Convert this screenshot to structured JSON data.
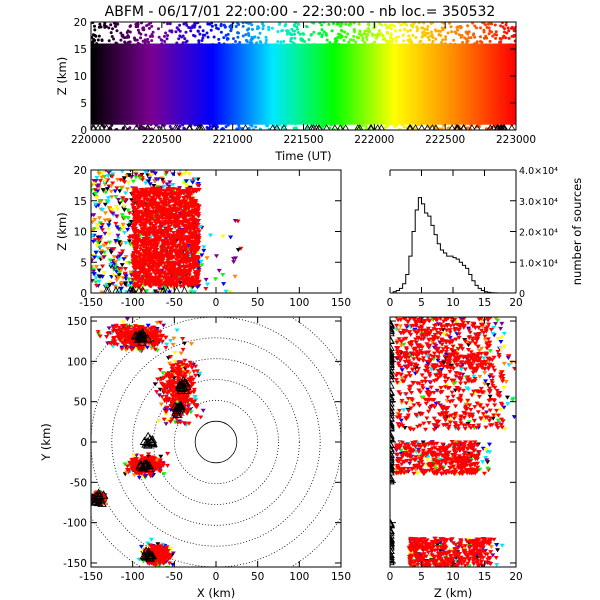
{
  "title": "ABFM - 06/17/01 22:00:00 - 22:30:00 - nb loc.= 350532",
  "chart_data": [
    {
      "panel": "top",
      "type": "scatter",
      "xlabel": "Time (UT)",
      "ylabel": "Z (km)",
      "xlim": [
        220000,
        223000
      ],
      "ylim": [
        0,
        20
      ],
      "xticks": [
        220000,
        220500,
        221000,
        221500,
        222000,
        222500,
        223000
      ],
      "yticks": [
        0,
        5,
        10,
        15,
        20
      ],
      "color_mapping": "time",
      "palette": [
        "#000000",
        "#7a0092",
        "#0000ff",
        "#00e8ff",
        "#00ff00",
        "#ffff00",
        "#ff8800",
        "#ff0000"
      ],
      "density_z_bottom": 1,
      "density_z_top": 16
    },
    {
      "panel": "xz",
      "type": "scatter",
      "xlabel": "",
      "ylabel": "Z (km)",
      "xlim": [
        -150,
        150
      ],
      "ylim": [
        0,
        20
      ],
      "xticks": [
        -150,
        -100,
        -50,
        0,
        50,
        100,
        150
      ],
      "yticks": [
        0,
        5,
        10,
        15,
        20
      ],
      "clusters": [
        {
          "x": [
            -100,
            -20
          ],
          "z": [
            1,
            17
          ],
          "color": "#ff0000"
        },
        {
          "x": [
            -150,
            -90
          ],
          "z": [
            0,
            20
          ],
          "color": "mixed"
        },
        {
          "x": [
            -80,
            -40
          ],
          "z": [
            15,
            20
          ],
          "color": "mixed"
        }
      ]
    },
    {
      "panel": "histogram",
      "type": "line",
      "xlabel": "",
      "ylabel": "number of sources",
      "xlim": [
        0,
        20
      ],
      "ylim": [
        0,
        40000
      ],
      "xticks": [
        0,
        5,
        10,
        15,
        20
      ],
      "ytick_labels": [
        "0",
        "1.0×10⁴",
        "2.0×10⁴",
        "3.0×10⁴",
        "4.0×10⁴"
      ],
      "ytick_values": [
        0,
        10000,
        20000,
        30000,
        40000
      ],
      "x": [
        0.5,
        1,
        1.5,
        2,
        2.5,
        3,
        3.5,
        4,
        4.5,
        5,
        5.5,
        6,
        6.5,
        7,
        7.5,
        8,
        8.5,
        9,
        9.5,
        10,
        10.5,
        11,
        11.5,
        12,
        12.5,
        13,
        13.5,
        14,
        14.5,
        15,
        15.5,
        16,
        16.5,
        17,
        17.5,
        18,
        18.5,
        19,
        19.5,
        20
      ],
      "values": [
        0,
        400,
        800,
        1500,
        3000,
        6000,
        12000,
        20000,
        27000,
        31000,
        29000,
        26000,
        25000,
        22000,
        19000,
        16000,
        14000,
        13000,
        12000,
        12000,
        11500,
        11000,
        10000,
        9000,
        8000,
        6000,
        4000,
        2500,
        1500,
        800,
        400,
        200,
        100,
        50,
        0,
        0,
        0,
        0,
        0,
        0
      ]
    },
    {
      "panel": "xy",
      "type": "scatter",
      "xlabel": "X (km)",
      "ylabel": "Y (km)",
      "xlim": [
        -150,
        150
      ],
      "ylim": [
        -155,
        155
      ],
      "xticks": [
        -150,
        -100,
        -50,
        0,
        50,
        100,
        150
      ],
      "yticks": [
        -150,
        -100,
        -50,
        0,
        50,
        100,
        150
      ],
      "range_rings_km": [
        25,
        50,
        75,
        100,
        125,
        150,
        175
      ],
      "solid_ring_km": 25,
      "clusters": [
        {
          "cx": -95,
          "cy": 130,
          "rx": 45,
          "ry": 22,
          "color": "#ff0000"
        },
        {
          "cx": -45,
          "cy": 65,
          "rx": 30,
          "ry": 55,
          "color": "#ff0000"
        },
        {
          "cx": -85,
          "cy": -30,
          "rx": 25,
          "ry": 15,
          "color": "#ff0000"
        },
        {
          "cx": -70,
          "cy": -140,
          "rx": 20,
          "ry": 15,
          "color": "#ff0000"
        },
        {
          "cx": -140,
          "cy": -70,
          "rx": 8,
          "ry": 8,
          "color": "#ff0000"
        }
      ],
      "marker_stations": [
        {
          "x": -90,
          "y": 130
        },
        {
          "x": -40,
          "y": 70
        },
        {
          "x": -45,
          "y": 40
        },
        {
          "x": -80,
          "y": 0
        },
        {
          "x": -85,
          "y": -30
        },
        {
          "x": -140,
          "y": -70
        },
        {
          "x": -80,
          "y": -140
        }
      ]
    },
    {
      "panel": "zy",
      "type": "scatter",
      "xlabel": "Z (km)",
      "ylabel": "",
      "xlim": [
        0,
        20
      ],
      "ylim": [
        -155,
        155
      ],
      "xticks": [
        0,
        5,
        10,
        15,
        20
      ],
      "yticks": [
        -150,
        -100,
        -50,
        0,
        50,
        100,
        150
      ],
      "clusters": [
        {
          "z": [
            1,
            16
          ],
          "y": [
            90,
            155
          ],
          "color": "#ff0000"
        },
        {
          "z": [
            1,
            18
          ],
          "y": [
            15,
            110
          ],
          "color": "#ff0000"
        },
        {
          "z": [
            1,
            14
          ],
          "y": [
            -40,
            0
          ],
          "color": "#ff0000"
        },
        {
          "z": [
            3,
            16
          ],
          "y": [
            -155,
            -120
          ],
          "color": "#ff0000"
        }
      ]
    }
  ]
}
